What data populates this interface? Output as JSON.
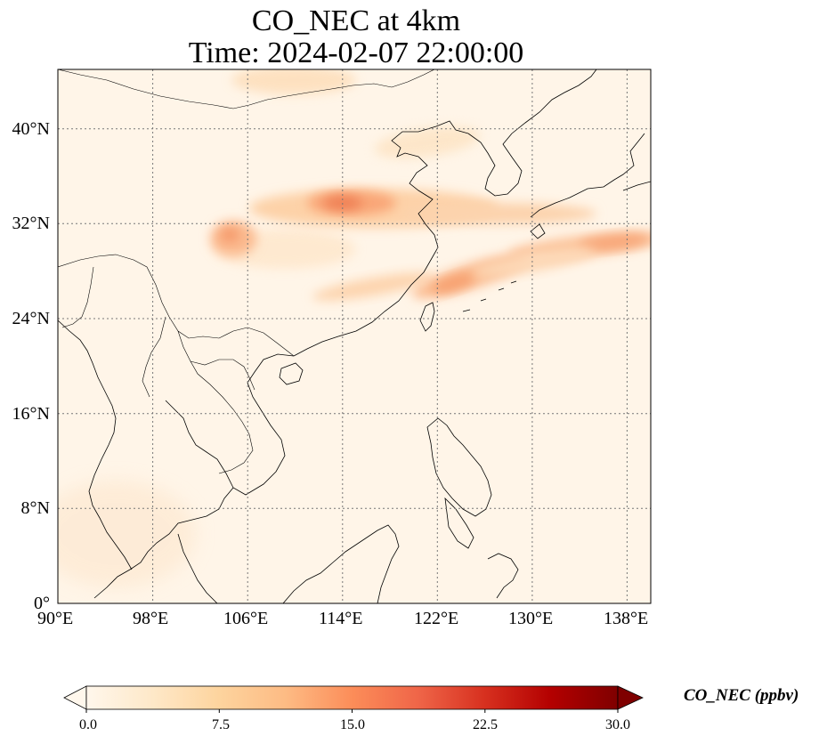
{
  "title": {
    "line1": "CO_NEC at 4km",
    "line2": "Time: 2024-02-07 22:00:00"
  },
  "map": {
    "extent": {
      "lon_min": 90,
      "lon_max": 140,
      "lat_min": 0,
      "lat_max": 45
    },
    "gridlines": true,
    "lon_ticks": [
      90,
      98,
      106,
      114,
      122,
      130,
      138
    ],
    "lat_ticks": [
      0,
      8,
      16,
      24,
      32,
      40
    ],
    "lon_tick_labels": [
      "90°E",
      "98°E",
      "106°E",
      "114°E",
      "122°E",
      "130°E",
      "138°E"
    ],
    "lat_tick_labels": [
      "0°",
      "8°N",
      "16°N",
      "24°N",
      "32°N",
      "40°N"
    ],
    "variable": "CO_NEC",
    "plumes": [
      {
        "region": "central-east China band",
        "lon": 114,
        "lat": 33.5,
        "value": 17
      },
      {
        "region": "Sichuan basin",
        "lon": 104,
        "lat": 31,
        "value": 13
      },
      {
        "region": "East China Sea to Japan band",
        "lon": 126,
        "lat": 27.5,
        "value": 14
      },
      {
        "region": "south of Japan",
        "lon": 136,
        "lat": 30,
        "value": 14
      },
      {
        "region": "north China / Mongolia",
        "lon": 111,
        "lat": 44,
        "value": 6
      }
    ]
  },
  "colorbar": {
    "label": "CO_NEC (ppbv)",
    "min": 0.0,
    "max": 30.0,
    "extend": "both",
    "tick_values": [
      0.0,
      7.5,
      15.0,
      22.5,
      30.0
    ],
    "tick_labels": [
      "0.0",
      "7.5",
      "15.0",
      "22.5",
      "30.0"
    ],
    "colormap": [
      "#fff7ec",
      "#fee8c8",
      "#fdd49e",
      "#fdbb84",
      "#fc8d59",
      "#ef6548",
      "#d7301f",
      "#b30000",
      "#7f0000"
    ]
  }
}
